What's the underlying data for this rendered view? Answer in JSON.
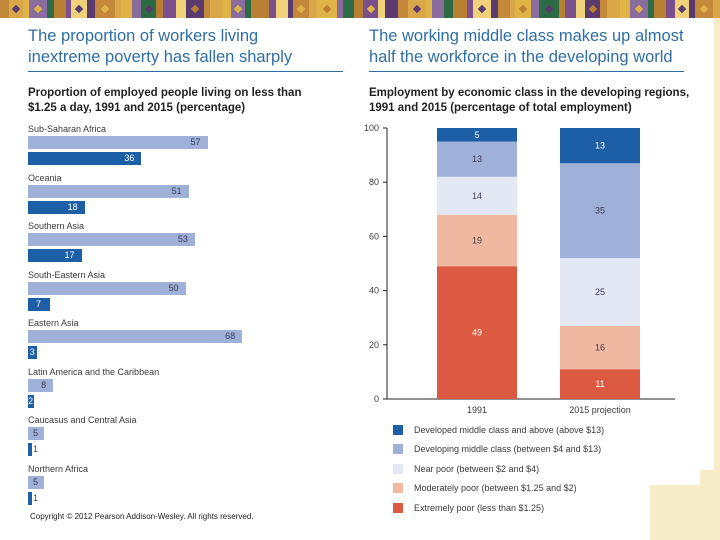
{
  "banner": {
    "pattern_colors": [
      "#c4883a",
      "#e0b347",
      "#2d6b45",
      "#7a4f8c",
      "#5b3a6e",
      "#d9a74a",
      "#8a6d9e",
      "#b98034",
      "#efd27a"
    ]
  },
  "left_panel": {
    "heading": "The proportion of workers living in extreme poverty has fallen sharply",
    "heading_lines": [
      "The proportion of workers living",
      "inextreme poverty has fallen sharply"
    ],
    "subhead_lines": [
      "Proportion of employed people living on less than",
      "$1.25 a day, 1991 and 2015  (percentage)"
    ]
  },
  "right_panel": {
    "heading_lines": [
      "The working middle class makes up almost",
      "half the workforce in the developing world"
    ],
    "subhead_lines": [
      "Employment by economic class in the developing regions,",
      "1991 and 2015 (percentage of total employment)"
    ]
  },
  "copyright": "Copyright © 2012 Pearson Addison-Wesley. All rights reserved.",
  "colors": {
    "heading_blue": "#2f6ea3",
    "bar_1991": "#9fb0d9",
    "bar_2015": "#1d5fa6",
    "developed_middle": "#1d5fa6",
    "developing_middle": "#9fb0d9",
    "near_poor": "#e4e8f4",
    "moderately_poor": "#f0b8a0",
    "extremely_poor": "#dc5a42",
    "cream": "#f6ecc7"
  },
  "chart_data": [
    {
      "type": "bar",
      "orientation": "horizontal",
      "title": "Proportion of employed people living on less than $1.25 a day, 1991 and 2015 (percentage)",
      "categories": [
        "Sub-Saharan Africa",
        "Oceania",
        "Southern Asia",
        "South-Eastern Asia",
        "Eastern Asia",
        "Latin America and the Caribbean",
        "Caucasus and Central Asia",
        "Northern Africa"
      ],
      "series": [
        {
          "name": "1991",
          "values": [
            57,
            51,
            53,
            50,
            68,
            8,
            5,
            5
          ]
        },
        {
          "name": "2015",
          "values": [
            36,
            18,
            17,
            7,
            3,
            2,
            1,
            1
          ]
        }
      ],
      "xlim": [
        0,
        70
      ],
      "data_labels": true,
      "grid": false
    },
    {
      "type": "bar",
      "stacked": true,
      "title": "Employment by economic class in the developing regions, 1991 and 2015 (percentage of total employment)",
      "categories": [
        "1991",
        "2015 projection"
      ],
      "series": [
        {
          "name": "Extremely poor (less than $1.25)",
          "values": [
            49,
            11
          ]
        },
        {
          "name": "Moderately poor (between $1.25 and $2)",
          "values": [
            19,
            16
          ]
        },
        {
          "name": "Near poor (between $2 and $4)",
          "values": [
            14,
            25
          ]
        },
        {
          "name": "Developing middle class (between $4 and $13)",
          "values": [
            13,
            35
          ]
        },
        {
          "name": "Developed middle class and above (above $13)",
          "values": [
            5,
            13
          ]
        }
      ],
      "ylim": [
        0,
        100
      ],
      "yticks": [
        0,
        20,
        40,
        60,
        80,
        100
      ],
      "legend_position": "bottom",
      "grid": false
    }
  ],
  "legend": [
    {
      "label": "Developed middle class and above (above $13)",
      "color": "#1d5fa6"
    },
    {
      "label": "Developing middle class (between $4 and $13)",
      "color": "#9fb0d9"
    },
    {
      "label": "Near poor (between $2 and $4)",
      "color": "#e4e8f4"
    },
    {
      "label": "Moderately poor (between $1.25 and $2)",
      "color": "#f0b8a0"
    },
    {
      "label": "Extremely poor (less than $1.25)",
      "color": "#dc5a42"
    }
  ]
}
